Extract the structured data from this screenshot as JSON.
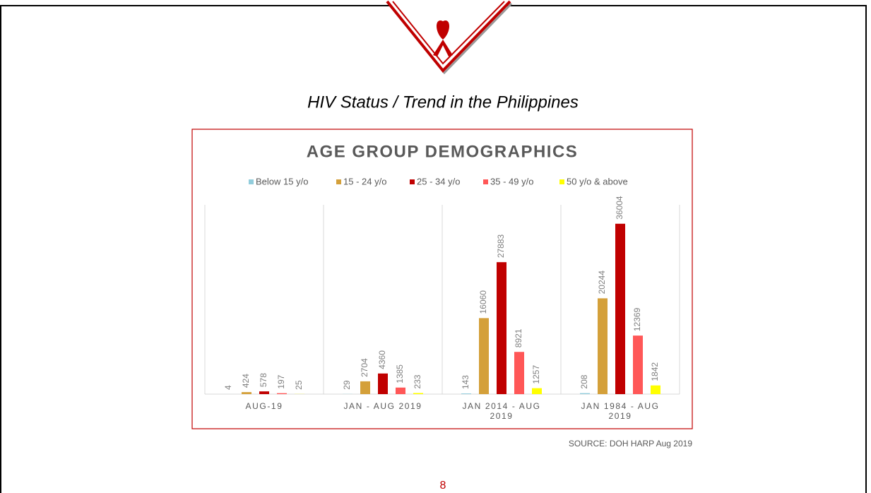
{
  "slide": {
    "title": "HIV Status / Trend in the Philippines",
    "source": "SOURCE: DOH HARP Aug 2019",
    "page_number": "8"
  },
  "chart_data": {
    "type": "bar",
    "title": "AGE GROUP DEMOGRAPHICS",
    "categories": [
      "AUG-19",
      "JAN - AUG 2019",
      "JAN 2014 - AUG 2019",
      "JAN 1984 - AUG 2019"
    ],
    "series": [
      {
        "name": "Below 15 y/o",
        "color": "#92cddc",
        "values": [
          4,
          29,
          143,
          208
        ]
      },
      {
        "name": "15 - 24 y/o",
        "color": "#d4a03a",
        "values": [
          424,
          2704,
          16060,
          20244
        ]
      },
      {
        "name": "25 - 34 y/o",
        "color": "#c00000",
        "values": [
          578,
          4360,
          27883,
          36004
        ]
      },
      {
        "name": "35 - 49 y/o",
        "color": "#ff5757",
        "values": [
          197,
          1385,
          8921,
          12369
        ]
      },
      {
        "name": "50 y/o & above",
        "color": "#ffff00",
        "values": [
          25,
          233,
          1257,
          1842
        ]
      }
    ],
    "ylim": [
      0,
      40000
    ],
    "legend": "top"
  }
}
